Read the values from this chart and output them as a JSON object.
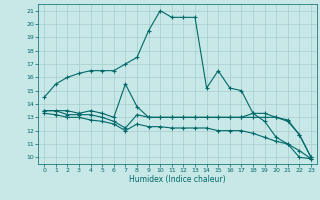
{
  "xlabel": "Humidex (Indice chaleur)",
  "xlim": [
    -0.5,
    23.5
  ],
  "ylim": [
    9.5,
    21.5
  ],
  "xticks": [
    0,
    1,
    2,
    3,
    4,
    5,
    6,
    7,
    8,
    9,
    10,
    11,
    12,
    13,
    14,
    15,
    16,
    17,
    18,
    19,
    20,
    21,
    22,
    23
  ],
  "yticks": [
    10,
    11,
    12,
    13,
    14,
    15,
    16,
    17,
    18,
    19,
    20,
    21
  ],
  "background_color": "#c8e8e8",
  "grid_color": "#a8cccc",
  "line_color": "#006868",
  "line1_x": [
    0,
    1,
    2,
    3,
    4,
    5,
    6,
    7,
    8,
    9,
    10,
    11,
    12,
    13,
    14,
    15,
    16,
    17,
    18,
    19,
    20,
    21,
    22,
    23
  ],
  "line1_y": [
    14.5,
    15.5,
    16.0,
    16.3,
    16.5,
    16.5,
    16.5,
    17.0,
    17.5,
    19.5,
    21.0,
    20.5,
    20.5,
    20.5,
    15.2,
    16.5,
    15.2,
    15.0,
    13.3,
    12.7,
    11.5,
    11.0,
    10.0,
    9.9
  ],
  "line2_x": [
    0,
    1,
    2,
    3,
    4,
    5,
    6,
    7,
    8,
    9,
    10,
    11,
    12,
    13,
    14,
    15,
    16,
    17,
    18,
    19,
    20,
    21,
    22,
    23
  ],
  "line2_y": [
    13.5,
    13.5,
    13.5,
    13.3,
    13.5,
    13.3,
    13.0,
    15.5,
    13.8,
    13.0,
    13.0,
    13.0,
    13.0,
    13.0,
    13.0,
    13.0,
    13.0,
    13.0,
    13.3,
    13.3,
    13.0,
    12.8,
    11.7,
    10.0
  ],
  "line3_x": [
    0,
    1,
    2,
    3,
    4,
    5,
    6,
    7,
    8,
    9,
    10,
    11,
    12,
    13,
    14,
    15,
    16,
    17,
    18,
    19,
    20,
    21,
    22,
    23
  ],
  "line3_y": [
    13.5,
    13.5,
    13.2,
    13.2,
    13.2,
    13.0,
    12.7,
    12.2,
    13.2,
    13.0,
    13.0,
    13.0,
    13.0,
    13.0,
    13.0,
    13.0,
    13.0,
    13.0,
    13.0,
    13.0,
    13.0,
    12.7,
    11.7,
    10.0
  ],
  "line4_x": [
    0,
    1,
    2,
    3,
    4,
    5,
    6,
    7,
    8,
    9,
    10,
    11,
    12,
    13,
    14,
    15,
    16,
    17,
    18,
    19,
    20,
    21,
    22,
    23
  ],
  "line4_y": [
    13.3,
    13.2,
    13.0,
    13.0,
    12.8,
    12.7,
    12.5,
    12.0,
    12.5,
    12.3,
    12.3,
    12.2,
    12.2,
    12.2,
    12.2,
    12.0,
    12.0,
    12.0,
    11.8,
    11.5,
    11.2,
    11.0,
    10.5,
    9.9
  ]
}
